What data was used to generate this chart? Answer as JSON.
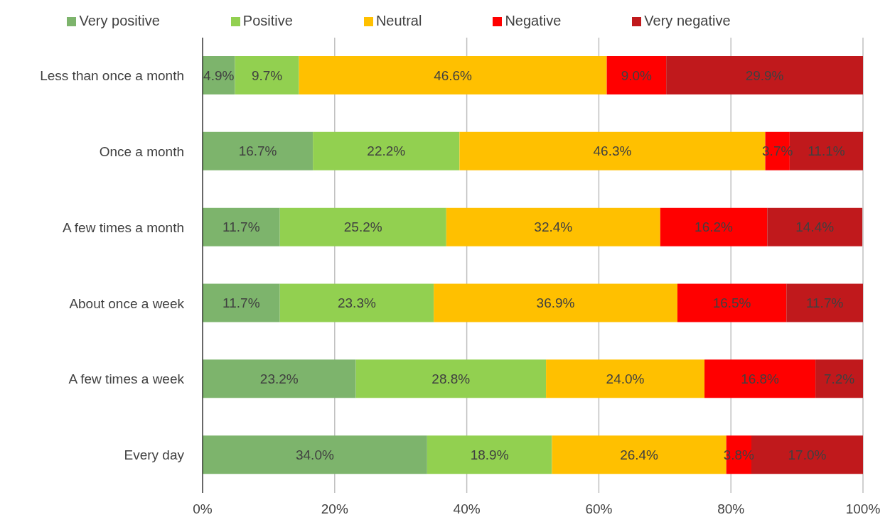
{
  "chart_data": {
    "type": "bar",
    "orientation": "horizontal",
    "stacked": true,
    "categories": [
      "Less than once a month",
      "Once a month",
      "A few times a month",
      "About once a week",
      "A few times a week",
      "Every day"
    ],
    "series": [
      {
        "name": "Very positive",
        "color": "#7db46c",
        "values": [
          4.9,
          16.7,
          11.7,
          11.7,
          23.2,
          34.0
        ],
        "value_labels": [
          "4.9%",
          "16.7%",
          "11.7%",
          "11.7%",
          "23.2%",
          "34.0%"
        ]
      },
      {
        "name": "Positive",
        "color": "#92d050",
        "values": [
          9.7,
          22.2,
          25.2,
          23.3,
          28.8,
          18.9
        ],
        "value_labels": [
          "9.7%",
          "22.2%",
          "25.2%",
          "23.3%",
          "28.8%",
          "18.9%"
        ]
      },
      {
        "name": "Neutral",
        "color": "#ffc000",
        "values": [
          46.6,
          46.3,
          32.4,
          36.9,
          24.0,
          26.4
        ],
        "value_labels": [
          "46.6%",
          "46.3%",
          "32.4%",
          "36.9%",
          "24.0%",
          "26.4%"
        ]
      },
      {
        "name": "Negative",
        "color": "#ff0000",
        "values": [
          9.0,
          3.7,
          16.2,
          16.5,
          16.8,
          3.8
        ],
        "value_labels": [
          "9.0%",
          "3.7%",
          "16.2%",
          "16.5%",
          "16.8%",
          "3.8%"
        ]
      },
      {
        "name": "Very negative",
        "color": "#c0191c",
        "values": [
          29.9,
          11.1,
          14.4,
          11.7,
          7.2,
          17.0
        ],
        "value_labels": [
          "29.9%",
          "11.1%",
          "14.4%",
          "11.7%",
          "7.2%",
          "17.0%"
        ]
      }
    ],
    "xlim": [
      0,
      100
    ],
    "xticks": [
      {
        "value": 0,
        "label": "0%"
      },
      {
        "value": 20,
        "label": "20%"
      },
      {
        "value": 40,
        "label": "40%"
      },
      {
        "value": 60,
        "label": "60%"
      },
      {
        "value": 80,
        "label": "80%"
      },
      {
        "value": 100,
        "label": "100%"
      }
    ],
    "grid": "x",
    "legend": "top"
  }
}
